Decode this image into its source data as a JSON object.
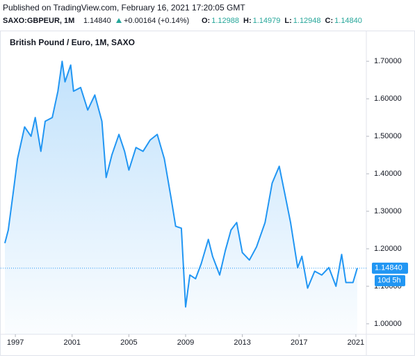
{
  "header": {
    "published": "Published on TradingView.com, February 16, 2021 17:20:05 GMT",
    "symbol": "SAXO:GBPEUR, 1M",
    "price": "1.14840",
    "change": "+0.00164 (+0.14%)",
    "ohlc": [
      {
        "key": "O:",
        "value": "1.12988"
      },
      {
        "key": "H:",
        "value": "1.14979"
      },
      {
        "key": "L:",
        "value": "1.12948"
      },
      {
        "key": "C:",
        "value": "1.14840"
      }
    ]
  },
  "chart_data": {
    "type": "area",
    "title": "British Pound / Euro, 1M, SAXO",
    "color": "#2196f3",
    "x": [
      1996.26,
      1996.5,
      1996.9,
      1997.15,
      1997.65,
      1998.1,
      1998.4,
      1998.8,
      1999.1,
      1999.6,
      2000.0,
      2000.3,
      2000.5,
      2000.9,
      2001.1,
      2001.6,
      2002.1,
      2002.6,
      2003.1,
      2003.4,
      2003.8,
      2004.3,
      2004.7,
      2005.0,
      2005.5,
      2006.0,
      2006.5,
      2007.0,
      2007.5,
      2008.0,
      2008.3,
      2008.7,
      2009.0,
      2009.3,
      2009.7,
      2010.1,
      2010.6,
      2010.9,
      2011.4,
      2011.8,
      2012.2,
      2012.6,
      2013.0,
      2013.5,
      2014.0,
      2014.6,
      2015.1,
      2015.6,
      2016.0,
      2016.4,
      2016.9,
      2017.2,
      2017.6,
      2018.1,
      2018.6,
      2019.1,
      2019.6,
      2020.0,
      2020.3,
      2020.8,
      2021.1
    ],
    "values": [
      1.215,
      1.25,
      1.365,
      1.44,
      1.525,
      1.5,
      1.55,
      1.46,
      1.54,
      1.55,
      1.62,
      1.7,
      1.645,
      1.69,
      1.62,
      1.63,
      1.57,
      1.61,
      1.54,
      1.39,
      1.45,
      1.505,
      1.46,
      1.41,
      1.47,
      1.46,
      1.49,
      1.505,
      1.44,
      1.33,
      1.26,
      1.255,
      1.045,
      1.13,
      1.12,
      1.16,
      1.225,
      1.18,
      1.13,
      1.195,
      1.25,
      1.27,
      1.19,
      1.17,
      1.205,
      1.27,
      1.375,
      1.42,
      1.345,
      1.27,
      1.15,
      1.18,
      1.095,
      1.14,
      1.13,
      1.15,
      1.1,
      1.185,
      1.11,
      1.11,
      1.1484
    ],
    "xlim": [
      1996.26,
      2021.74
    ],
    "ylim": [
      0.972,
      1.78
    ],
    "xticks": [
      1997,
      2001,
      2005,
      2009,
      2013,
      2017,
      2021
    ],
    "yticks": [
      {
        "value": 1.0,
        "label": "1.00000"
      },
      {
        "value": 1.1,
        "label": "1.10000"
      },
      {
        "value": 1.2,
        "label": "1.20000"
      },
      {
        "value": 1.3,
        "label": "1.30000"
      },
      {
        "value": 1.4,
        "label": "1.40000"
      },
      {
        "value": 1.5,
        "label": "1.50000"
      },
      {
        "value": 1.6,
        "label": "1.60000"
      },
      {
        "value": 1.7,
        "label": "1.70000"
      }
    ],
    "last_price": {
      "value": 1.1484,
      "label": "1.14840"
    },
    "countdown": "10d 5h"
  }
}
